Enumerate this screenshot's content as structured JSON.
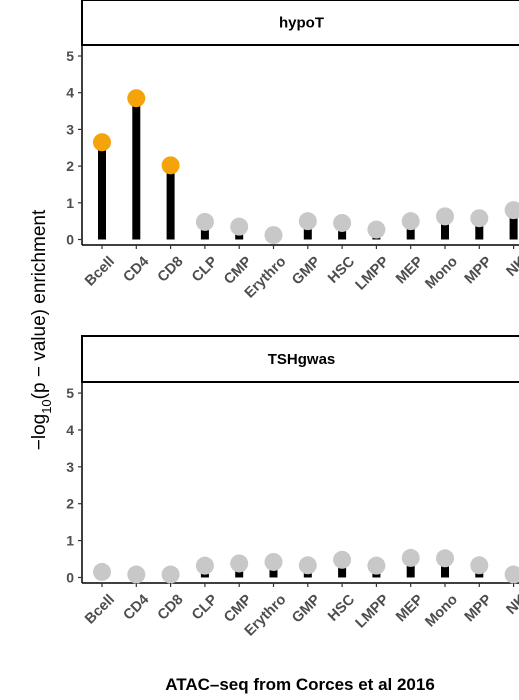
{
  "chart_data": {
    "type": "lollipop",
    "ylabel_parts": {
      "prefix": "−log",
      "sub": "10",
      "suffix": "(p − value) enrichment"
    },
    "xlabel": "ATAC–seq from Corces et al 2016",
    "categories": [
      "Bcell",
      "CD4",
      "CD8",
      "CLP",
      "CMP",
      "Erythro",
      "GMP",
      "HSC",
      "LMPP",
      "MEP",
      "Mono",
      "MPP",
      "NK"
    ],
    "ylim": [
      -0.15,
      5.3
    ],
    "yticks": [
      "0",
      "1",
      "2",
      "3",
      "4",
      "5"
    ],
    "colors": {
      "significant": "#F5A30A",
      "not_significant": "#C8C8C8",
      "stem": "#000000"
    },
    "panels": [
      {
        "title": "hypoT",
        "values": [
          2.65,
          3.85,
          2.02,
          0.48,
          0.35,
          0.12,
          0.5,
          0.45,
          0.27,
          0.5,
          0.63,
          0.58,
          0.8
        ],
        "significant": [
          true,
          true,
          true,
          false,
          false,
          false,
          false,
          false,
          false,
          false,
          false,
          false,
          false
        ]
      },
      {
        "title": "TSHgwas",
        "values": [
          0.15,
          0.08,
          0.08,
          0.32,
          0.38,
          0.42,
          0.33,
          0.48,
          0.32,
          0.53,
          0.52,
          0.33,
          0.08
        ],
        "significant": [
          false,
          false,
          false,
          false,
          false,
          false,
          false,
          false,
          false,
          false,
          false,
          false,
          false
        ]
      }
    ]
  }
}
